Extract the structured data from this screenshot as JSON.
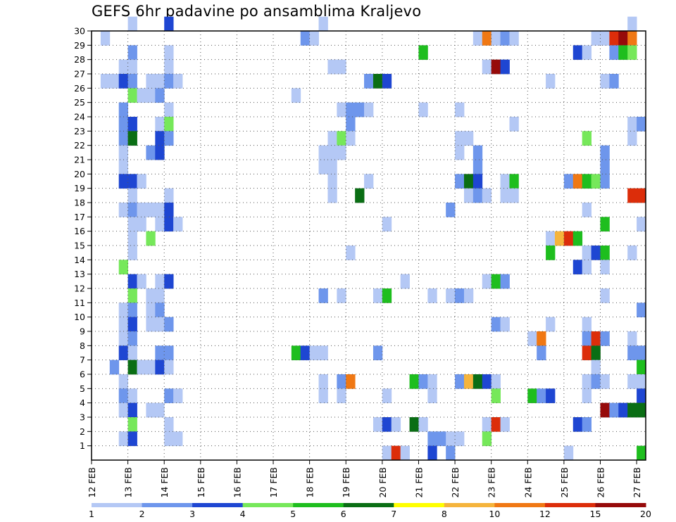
{
  "chart_data": {
    "type": "heatmap",
    "title": "GEFS 6hr padavine po ansamblima Kraljevo",
    "x_tick_labels": [
      "12 FEB",
      "13 FEB",
      "14 FEB",
      "15 FEB",
      "16 FEB",
      "17 FEB",
      "18 FEB",
      "19 FEB",
      "20 FEB",
      "21 FEB",
      "22 FEB",
      "23 FEB",
      "24 FEB",
      "25 FEB",
      "26 FEB",
      "27 FEB"
    ],
    "y_tick_labels": [
      "1",
      "2",
      "3",
      "4",
      "5",
      "6",
      "7",
      "8",
      "9",
      "10",
      "11",
      "12",
      "13",
      "14",
      "15",
      "16",
      "17",
      "18",
      "19",
      "20",
      "21",
      "22",
      "23",
      "24",
      "25",
      "26",
      "27",
      "28",
      "29",
      "30"
    ],
    "y_range": [
      0,
      30
    ],
    "x_range": [
      0,
      60
    ],
    "x_unit": "6-hour steps from 12 FEB 00z",
    "grid": true,
    "colorbar": {
      "labels": [
        "1",
        "2",
        "3",
        "4",
        "5",
        "6",
        "7",
        "8",
        "10",
        "12",
        "15",
        "20"
      ],
      "colors": [
        "#b4c8f5",
        "#6e96ec",
        "#1e46d2",
        "#76e85a",
        "#1ebe1e",
        "#0a6e14",
        "#ffff00",
        "#f5b43c",
        "#f07814",
        "#dc2d0a",
        "#960a0a"
      ]
    },
    "cells": [
      [
        4,
        30,
        0
      ],
      [
        8,
        30,
        2
      ],
      [
        25,
        30,
        0
      ],
      [
        59,
        30,
        0
      ],
      [
        1,
        29,
        0
      ],
      [
        23,
        29,
        1
      ],
      [
        24,
        29,
        0
      ],
      [
        42,
        29,
        0
      ],
      [
        43,
        29,
        8
      ],
      [
        44,
        29,
        0
      ],
      [
        45,
        29,
        1
      ],
      [
        46,
        29,
        0
      ],
      [
        55,
        29,
        0
      ],
      [
        56,
        29,
        0
      ],
      [
        57,
        29,
        9
      ],
      [
        58,
        29,
        10
      ],
      [
        59,
        29,
        8
      ],
      [
        4,
        28,
        1
      ],
      [
        8,
        28,
        0
      ],
      [
        36,
        28,
        4
      ],
      [
        53,
        28,
        2
      ],
      [
        54,
        28,
        0
      ],
      [
        57,
        28,
        1
      ],
      [
        58,
        28,
        4
      ],
      [
        59,
        28,
        3
      ],
      [
        3,
        27,
        0
      ],
      [
        4,
        27,
        0
      ],
      [
        8,
        27,
        0
      ],
      [
        26,
        27,
        0
      ],
      [
        27,
        27,
        0
      ],
      [
        43,
        27,
        0
      ],
      [
        44,
        27,
        10
      ],
      [
        45,
        27,
        2
      ],
      [
        1,
        26,
        0
      ],
      [
        2,
        26,
        0
      ],
      [
        3,
        26,
        2
      ],
      [
        4,
        26,
        1
      ],
      [
        6,
        26,
        0
      ],
      [
        7,
        26,
        0
      ],
      [
        8,
        26,
        1
      ],
      [
        9,
        26,
        0
      ],
      [
        30,
        26,
        1
      ],
      [
        31,
        26,
        5
      ],
      [
        32,
        26,
        2
      ],
      [
        50,
        26,
        0
      ],
      [
        56,
        26,
        0
      ],
      [
        57,
        26,
        1
      ],
      [
        4,
        25,
        3
      ],
      [
        5,
        25,
        0
      ],
      [
        6,
        25,
        0
      ],
      [
        7,
        25,
        1
      ],
      [
        22,
        25,
        0
      ],
      [
        3,
        24,
        1
      ],
      [
        8,
        24,
        0
      ],
      [
        27,
        24,
        0
      ],
      [
        28,
        24,
        1
      ],
      [
        29,
        24,
        1
      ],
      [
        30,
        24,
        0
      ],
      [
        36,
        24,
        0
      ],
      [
        40,
        24,
        0
      ],
      [
        3,
        23,
        1
      ],
      [
        4,
        23,
        2
      ],
      [
        7,
        23,
        0
      ],
      [
        8,
        23,
        3
      ],
      [
        28,
        23,
        1
      ],
      [
        46,
        23,
        0
      ],
      [
        59,
        23,
        0
      ],
      [
        60,
        23,
        1
      ],
      [
        3,
        22,
        1
      ],
      [
        4,
        22,
        5
      ],
      [
        7,
        22,
        2
      ],
      [
        8,
        22,
        1
      ],
      [
        26,
        22,
        0
      ],
      [
        27,
        22,
        3
      ],
      [
        28,
        22,
        0
      ],
      [
        40,
        22,
        0
      ],
      [
        41,
        22,
        0
      ],
      [
        54,
        22,
        3
      ],
      [
        59,
        22,
        0
      ],
      [
        3,
        21,
        0
      ],
      [
        6,
        21,
        1
      ],
      [
        7,
        21,
        2
      ],
      [
        25,
        21,
        0
      ],
      [
        26,
        21,
        0
      ],
      [
        27,
        21,
        0
      ],
      [
        40,
        21,
        0
      ],
      [
        42,
        21,
        1
      ],
      [
        56,
        21,
        1
      ],
      [
        3,
        20,
        0
      ],
      [
        25,
        20,
        0
      ],
      [
        26,
        20,
        0
      ],
      [
        42,
        20,
        1
      ],
      [
        56,
        20,
        1
      ],
      [
        3,
        19,
        2
      ],
      [
        4,
        19,
        2
      ],
      [
        5,
        19,
        0
      ],
      [
        26,
        19,
        0
      ],
      [
        30,
        19,
        0
      ],
      [
        40,
        19,
        1
      ],
      [
        41,
        19,
        5
      ],
      [
        42,
        19,
        2
      ],
      [
        45,
        19,
        0
      ],
      [
        46,
        19,
        4
      ],
      [
        52,
        19,
        1
      ],
      [
        53,
        19,
        8
      ],
      [
        54,
        19,
        4
      ],
      [
        55,
        19,
        3
      ],
      [
        56,
        19,
        1
      ],
      [
        4,
        18,
        0
      ],
      [
        8,
        18,
        0
      ],
      [
        26,
        18,
        0
      ],
      [
        29,
        18,
        5
      ],
      [
        41,
        18,
        0
      ],
      [
        42,
        18,
        1
      ],
      [
        43,
        18,
        0
      ],
      [
        45,
        18,
        0
      ],
      [
        46,
        18,
        0
      ],
      [
        59,
        18,
        9
      ],
      [
        60,
        18,
        9
      ],
      [
        3,
        17,
        0
      ],
      [
        4,
        17,
        1
      ],
      [
        5,
        17,
        0
      ],
      [
        6,
        17,
        0
      ],
      [
        7,
        17,
        0
      ],
      [
        8,
        17,
        2
      ],
      [
        39,
        17,
        1
      ],
      [
        54,
        17,
        0
      ],
      [
        4,
        16,
        0
      ],
      [
        5,
        16,
        0
      ],
      [
        7,
        16,
        0
      ],
      [
        8,
        16,
        2
      ],
      [
        9,
        16,
        0
      ],
      [
        32,
        16,
        0
      ],
      [
        56,
        16,
        4
      ],
      [
        60,
        16,
        0
      ],
      [
        4,
        15,
        0
      ],
      [
        6,
        15,
        3
      ],
      [
        50,
        15,
        0
      ],
      [
        51,
        15,
        7
      ],
      [
        52,
        15,
        9
      ],
      [
        53,
        15,
        4
      ],
      [
        4,
        14,
        0
      ],
      [
        28,
        14,
        0
      ],
      [
        50,
        14,
        4
      ],
      [
        54,
        14,
        0
      ],
      [
        55,
        14,
        2
      ],
      [
        56,
        14,
        4
      ],
      [
        59,
        14,
        0
      ],
      [
        3,
        13,
        3
      ],
      [
        53,
        13,
        2
      ],
      [
        54,
        13,
        0
      ],
      [
        56,
        13,
        0
      ],
      [
        4,
        12,
        2
      ],
      [
        5,
        12,
        0
      ],
      [
        7,
        12,
        0
      ],
      [
        8,
        12,
        2
      ],
      [
        34,
        12,
        0
      ],
      [
        43,
        12,
        0
      ],
      [
        44,
        12,
        4
      ],
      [
        45,
        12,
        1
      ],
      [
        4,
        11,
        3
      ],
      [
        6,
        11,
        0
      ],
      [
        7,
        11,
        0
      ],
      [
        25,
        11,
        1
      ],
      [
        27,
        11,
        0
      ],
      [
        31,
        11,
        0
      ],
      [
        32,
        11,
        4
      ],
      [
        37,
        11,
        0
      ],
      [
        39,
        11,
        0
      ],
      [
        40,
        11,
        1
      ],
      [
        41,
        11,
        0
      ],
      [
        56,
        11,
        0
      ],
      [
        3,
        10,
        0
      ],
      [
        4,
        10,
        1
      ],
      [
        6,
        10,
        0
      ],
      [
        7,
        10,
        1
      ],
      [
        60,
        10,
        1
      ],
      [
        3,
        9,
        0
      ],
      [
        4,
        9,
        2
      ],
      [
        6,
        9,
        0
      ],
      [
        7,
        9,
        0
      ],
      [
        8,
        9,
        1
      ],
      [
        44,
        9,
        1
      ],
      [
        45,
        9,
        0
      ],
      [
        50,
        9,
        0
      ],
      [
        54,
        9,
        0
      ],
      [
        3,
        8,
        0
      ],
      [
        4,
        8,
        1
      ],
      [
        48,
        8,
        0
      ],
      [
        49,
        8,
        8
      ],
      [
        54,
        8,
        1
      ],
      [
        55,
        8,
        9
      ],
      [
        56,
        8,
        1
      ],
      [
        59,
        8,
        0
      ],
      [
        3,
        7,
        2
      ],
      [
        4,
        7,
        0
      ],
      [
        7,
        7,
        1
      ],
      [
        8,
        7,
        1
      ],
      [
        22,
        7,
        4
      ],
      [
        23,
        7,
        2
      ],
      [
        24,
        7,
        0
      ],
      [
        25,
        7,
        0
      ],
      [
        31,
        7,
        1
      ],
      [
        49,
        7,
        1
      ],
      [
        54,
        7,
        9
      ],
      [
        55,
        7,
        5
      ],
      [
        59,
        7,
        1
      ],
      [
        60,
        7,
        1
      ],
      [
        2,
        6,
        1
      ],
      [
        4,
        6,
        5
      ],
      [
        5,
        6,
        0
      ],
      [
        6,
        6,
        0
      ],
      [
        7,
        6,
        2
      ],
      [
        8,
        6,
        0
      ],
      [
        55,
        6,
        0
      ],
      [
        60,
        6,
        4
      ],
      [
        3,
        5,
        0
      ],
      [
        25,
        5,
        0
      ],
      [
        27,
        5,
        1
      ],
      [
        28,
        5,
        8
      ],
      [
        35,
        5,
        4
      ],
      [
        36,
        5,
        1
      ],
      [
        37,
        5,
        0
      ],
      [
        40,
        5,
        1
      ],
      [
        41,
        5,
        7
      ],
      [
        42,
        5,
        5
      ],
      [
        43,
        5,
        2
      ],
      [
        44,
        5,
        0
      ],
      [
        54,
        5,
        0
      ],
      [
        55,
        5,
        1
      ],
      [
        56,
        5,
        0
      ],
      [
        59,
        5,
        0
      ],
      [
        60,
        5,
        0
      ],
      [
        3,
        4,
        1
      ],
      [
        4,
        4,
        0
      ],
      [
        8,
        4,
        1
      ],
      [
        9,
        4,
        0
      ],
      [
        25,
        4,
        0
      ],
      [
        27,
        4,
        0
      ],
      [
        32,
        4,
        0
      ],
      [
        37,
        4,
        0
      ],
      [
        44,
        4,
        3
      ],
      [
        48,
        4,
        4
      ],
      [
        49,
        4,
        1
      ],
      [
        50,
        4,
        2
      ],
      [
        54,
        4,
        0
      ],
      [
        60,
        4,
        2
      ],
      [
        3,
        3,
        0
      ],
      [
        4,
        3,
        2
      ],
      [
        6,
        3,
        0
      ],
      [
        7,
        3,
        0
      ],
      [
        56,
        3,
        10
      ],
      [
        57,
        3,
        1
      ],
      [
        58,
        3,
        2
      ],
      [
        59,
        3,
        5
      ],
      [
        60,
        3,
        5
      ],
      [
        4,
        2,
        3
      ],
      [
        8,
        2,
        0
      ],
      [
        31,
        2,
        0
      ],
      [
        32,
        2,
        2
      ],
      [
        33,
        2,
        0
      ],
      [
        35,
        2,
        5
      ],
      [
        36,
        2,
        0
      ],
      [
        43,
        2,
        0
      ],
      [
        44,
        2,
        9
      ],
      [
        45,
        2,
        0
      ],
      [
        53,
        2,
        2
      ],
      [
        54,
        2,
        1
      ],
      [
        3,
        1,
        0
      ],
      [
        4,
        1,
        2
      ],
      [
        8,
        1,
        0
      ],
      [
        9,
        1,
        0
      ],
      [
        37,
        1,
        1
      ],
      [
        38,
        1,
        1
      ],
      [
        39,
        1,
        0
      ],
      [
        40,
        1,
        0
      ],
      [
        43,
        1,
        3
      ],
      [
        32,
        0,
        0
      ],
      [
        33,
        0,
        9
      ],
      [
        34,
        0,
        0
      ],
      [
        37,
        0,
        2
      ],
      [
        39,
        0,
        1
      ],
      [
        52,
        0,
        0
      ],
      [
        60,
        0,
        4
      ]
    ]
  }
}
